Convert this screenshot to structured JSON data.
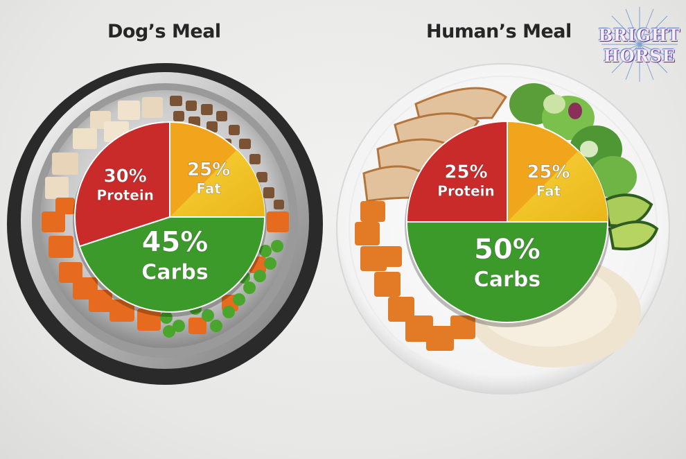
{
  "logo": {
    "line1": "BRIGHT",
    "line2": "HORSE"
  },
  "chart_data": [
    {
      "type": "pie",
      "title": "Dog’s Meal",
      "slices": [
        {
          "pct": "30%",
          "label": "Protein",
          "value": 30,
          "color": "#c92a2a"
        },
        {
          "pct": "25%",
          "label": "Fat",
          "value": 25,
          "color": "#f0a51c"
        },
        {
          "pct": "45%",
          "label": "Carbs",
          "value": 45,
          "color": "#3b9a2a"
        }
      ]
    },
    {
      "type": "pie",
      "title": "Human’s Meal",
      "slices": [
        {
          "pct": "25%",
          "label": "Protein",
          "value": 25,
          "color": "#c92a2a"
        },
        {
          "pct": "25%",
          "label": "Fat",
          "value": 25,
          "color": "#f0a51c"
        },
        {
          "pct": "50%",
          "label": "Carbs",
          "value": 50,
          "color": "#3b9a2a"
        }
      ]
    }
  ]
}
